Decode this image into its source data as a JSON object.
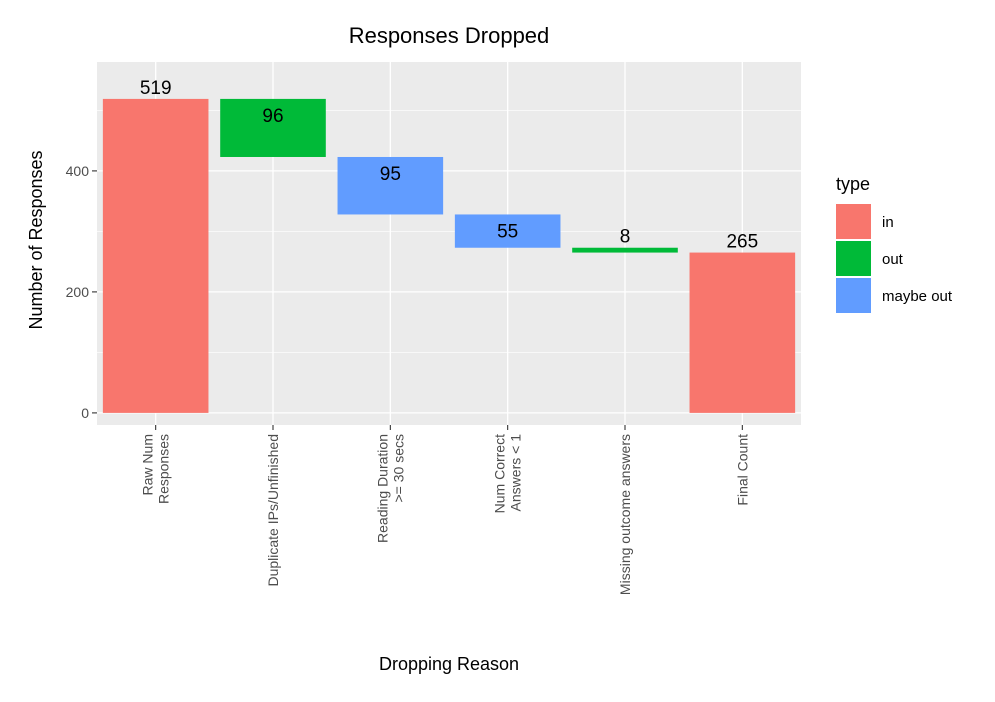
{
  "chart_data": {
    "type": "bar",
    "subtype": "waterfall",
    "title": "Responses Dropped",
    "xlabel": "Dropping Reason",
    "ylabel": "Number of Responses",
    "ylim": [
      -20,
      580
    ],
    "yticks": [
      0,
      200,
      400
    ],
    "grid": true,
    "legend_position": "right",
    "legend_title": "type",
    "types": [
      {
        "key": "in",
        "label": "in",
        "color": "#F8766D"
      },
      {
        "key": "out",
        "label": "out",
        "color": "#00BA38"
      },
      {
        "key": "maybe out",
        "label": "maybe out",
        "color": "#619CFF"
      }
    ],
    "categories": [
      [
        "Raw Num",
        "Responses"
      ],
      [
        "Duplicate IPs/Unfinished"
      ],
      [
        "Reading Duration",
        ">= 30 secs"
      ],
      [
        "Num Correct",
        "Answers < 1"
      ],
      [
        "Missing outcome answers"
      ],
      [
        "Final Count"
      ]
    ],
    "bars": [
      {
        "start": 0,
        "end": 519,
        "value": 519,
        "type": "in",
        "label": "519",
        "label_pos": "above"
      },
      {
        "start": 423,
        "end": 519,
        "value": 96,
        "type": "out",
        "label": "96",
        "label_pos": "inside"
      },
      {
        "start": 328,
        "end": 423,
        "value": 95,
        "type": "maybe out",
        "label": "95",
        "label_pos": "inside"
      },
      {
        "start": 273,
        "end": 328,
        "value": 55,
        "type": "maybe out",
        "label": "55",
        "label_pos": "inside"
      },
      {
        "start": 265,
        "end": 273,
        "value": 8,
        "type": "out",
        "label": "8",
        "label_pos": "above"
      },
      {
        "start": 0,
        "end": 265,
        "value": 265,
        "type": "in",
        "label": "265",
        "label_pos": "above"
      }
    ]
  }
}
